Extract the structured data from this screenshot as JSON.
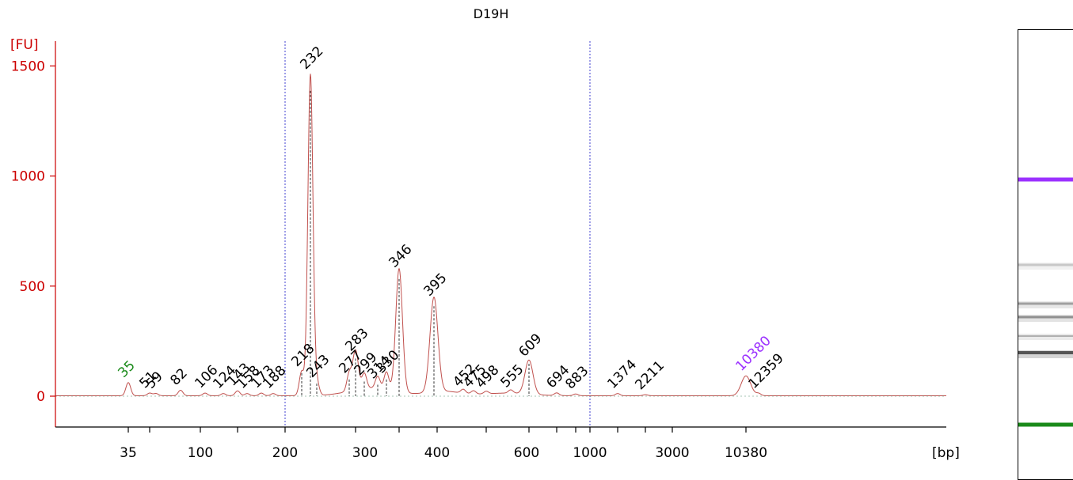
{
  "chart_data": {
    "type": "line",
    "title": "D19H",
    "ylabel": "[FU]",
    "xlabel": "[bp]",
    "ylim": [
      -140,
      1600
    ],
    "yticks": [
      0,
      500,
      1000,
      1500
    ],
    "xticks": [
      "35",
      "100",
      "200",
      "300",
      "400",
      "600",
      "1000",
      "3000",
      "10380"
    ],
    "grid": false,
    "vertical_reference_lines_bp": [
      200,
      1000
    ],
    "colors": {
      "trace": "#c0504d",
      "axis": "#cc0000",
      "lower_marker": "#1a8a1a",
      "upper_marker": "#9b30ff",
      "label": "#000000",
      "reference_line": "#4040d0"
    },
    "peaks": [
      {
        "bp": 35,
        "label": "35",
        "fu": 60,
        "role": "lower_marker"
      },
      {
        "bp": 51,
        "label": "51",
        "fu": 12
      },
      {
        "bp": 59,
        "label": "59",
        "fu": 10
      },
      {
        "bp": 82,
        "label": "82",
        "fu": 25
      },
      {
        "bp": 106,
        "label": "106",
        "fu": 12
      },
      {
        "bp": 124,
        "label": "124",
        "fu": 10
      },
      {
        "bp": 143,
        "label": "143",
        "fu": 22
      },
      {
        "bp": 158,
        "label": "158",
        "fu": 10
      },
      {
        "bp": 173,
        "label": "173",
        "fu": 12
      },
      {
        "bp": 188,
        "label": "188",
        "fu": 10
      },
      {
        "bp": 218,
        "label": "218",
        "fu": 110
      },
      {
        "bp": 232,
        "label": "232",
        "fu": 1460
      },
      {
        "bp": 243,
        "label": "243",
        "fu": 60
      },
      {
        "bp": 277,
        "label": "277",
        "fu": 80
      },
      {
        "bp": 283,
        "label": "283",
        "fu": 180
      },
      {
        "bp": 299,
        "label": "299",
        "fu": 70
      },
      {
        "bp": 314,
        "label": "314",
        "fu": 55
      },
      {
        "bp": 330,
        "label": "330",
        "fu": 80
      },
      {
        "bp": 346,
        "label": "346",
        "fu": 560
      },
      {
        "bp": 395,
        "label": "395",
        "fu": 430
      },
      {
        "bp": 452,
        "label": "452",
        "fu": 18
      },
      {
        "bp": 475,
        "label": "475",
        "fu": 15
      },
      {
        "bp": 498,
        "label": "498",
        "fu": 12
      },
      {
        "bp": 555,
        "label": "555",
        "fu": 15
      },
      {
        "bp": 609,
        "label": "609",
        "fu": 155
      },
      {
        "bp": 694,
        "label": "694",
        "fu": 12
      },
      {
        "bp": 883,
        "label": "883",
        "fu": 8
      },
      {
        "bp": 1374,
        "label": "1374",
        "fu": 10
      },
      {
        "bp": 2211,
        "label": "2211",
        "fu": 5
      },
      {
        "bp": 10380,
        "label": "10380",
        "fu": 90,
        "role": "upper_marker"
      },
      {
        "bp": 12359,
        "label": "12359",
        "fu": 10
      }
    ],
    "gel_lane": {
      "bands": [
        {
          "color": "#9b30ff",
          "label": "upper_marker"
        },
        {
          "color": "#c8c8c8",
          "label": "band"
        },
        {
          "color": "#a0a0a0",
          "label": "band"
        },
        {
          "color": "#909090",
          "label": "band"
        },
        {
          "color": "#b0b0b0",
          "label": "band"
        },
        {
          "color": "#555555",
          "label": "band"
        },
        {
          "color": "#1a8a1a",
          "label": "lower_marker"
        }
      ]
    }
  }
}
